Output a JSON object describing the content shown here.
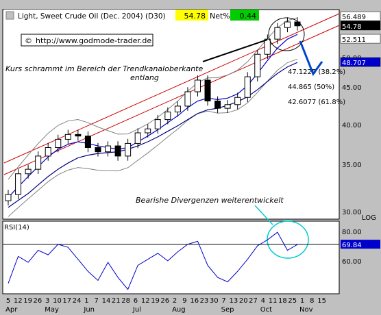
{
  "header": {
    "title": "Light, Sweet Crude Oil (Dec. 2004) (D30)",
    "last": "54.78",
    "pct_label": "Net%",
    "pct_value": "0.44",
    "url": "http://www.godmode-trader.de",
    "copyright_symbol": "©"
  },
  "annotations": {
    "trend_line1": "Kurs schrammt im Bereich der Trendkanaloberkante",
    "trend_line2": "entlang",
    "divergence": "Bearishe Divergenzen weiterentwickelt",
    "fib1": "47.1225 (38.2%)",
    "fib2": "44.865 (50%)",
    "fib3": "42.6077 (61.8%)"
  },
  "price_panel": {
    "scale_label": "LOG",
    "y_ticks": [
      "50.00",
      "45.00",
      "40.00",
      "35.00",
      "30.00"
    ],
    "markers": [
      {
        "label": "56.489",
        "value": 56.489,
        "bg": "#ffffff",
        "fg": "#000000"
      },
      {
        "label": "54.78",
        "value": 54.78,
        "bg": "#000000",
        "fg": "#ffffff"
      },
      {
        "label": "52.511",
        "value": 52.511,
        "bg": "#ffffff",
        "fg": "#000000"
      },
      {
        "label": "48.707",
        "value": 48.707,
        "bg": "#0000cc",
        "fg": "#ffffff"
      }
    ]
  },
  "rsi_panel": {
    "label": "RSI(14)",
    "y_ticks": [
      "80.00",
      "60.00"
    ],
    "marker": {
      "label": "69.84",
      "value": 69.84,
      "bg": "#0000cc",
      "fg": "#ffffff"
    }
  },
  "x_axis": {
    "days": [
      "5",
      "12",
      "19",
      "26",
      "3",
      "10",
      "17",
      "24",
      "1",
      "7",
      "14",
      "21",
      "28",
      "6",
      "12",
      "19",
      "26",
      "2",
      "9",
      "16",
      "23",
      "30",
      "7",
      "13",
      "20",
      "27",
      "4",
      "11",
      "18",
      "25",
      "1",
      "8",
      "15"
    ],
    "months": [
      "Apr",
      "May",
      "Jun",
      "Jul",
      "Aug",
      "Sep",
      "Oct",
      "Nov"
    ]
  },
  "colors": {
    "price": "#000000",
    "ma_fast": "#0000cc",
    "ma_slow": "#000080",
    "bollinger": "#808080",
    "channel": "#cc0000",
    "rsi": "#0000cc",
    "highlight": "#00cccc",
    "title_yellow": "#ffff00",
    "title_green": "#00cc00"
  },
  "chart_data": [
    {
      "type": "line",
      "title": "Light, Sweet Crude Oil (Dec. 2004) (D30)",
      "xlabel": "",
      "ylabel": "",
      "yscale": "log",
      "ylim": [
        29.5,
        57.5
      ],
      "x": [
        "2004-04-05",
        "2004-04-12",
        "2004-04-19",
        "2004-04-26",
        "2004-05-03",
        "2004-05-10",
        "2004-05-17",
        "2004-05-24",
        "2004-06-01",
        "2004-06-07",
        "2004-06-14",
        "2004-06-21",
        "2004-06-28",
        "2004-07-06",
        "2004-07-12",
        "2004-07-19",
        "2004-07-26",
        "2004-08-02",
        "2004-08-09",
        "2004-08-16",
        "2004-08-23",
        "2004-08-30",
        "2004-09-07",
        "2004-09-13",
        "2004-09-20",
        "2004-09-27",
        "2004-10-04",
        "2004-10-11",
        "2004-10-18",
        "2004-10-25"
      ],
      "series": [
        {
          "values": [
            31.8,
            34.0,
            34.5,
            36.0,
            37.0,
            38.0,
            38.6,
            38.4,
            37.0,
            36.5,
            37.2,
            36.0,
            37.5,
            38.8,
            39.3,
            40.5,
            41.5,
            42.3,
            44.3,
            46.0,
            43.0,
            42.0,
            42.5,
            43.5,
            46.5,
            50.0,
            52.5,
            54.5,
            55.5,
            54.8
          ]
        },
        {
          "values": [
            31.5,
            32.6,
            33.7,
            34.8,
            35.9,
            36.8,
            37.4,
            37.7,
            37.5,
            37.2,
            37.0,
            36.8,
            37.0,
            37.7,
            38.4,
            39.2,
            40.1,
            41.0,
            42.1,
            43.0,
            43.4,
            43.2,
            43.4,
            44.0,
            45.2,
            47.0,
            49.0,
            51.0,
            52.5,
            53.3
          ]
        },
        {
          "values": [
            30.5,
            31.2,
            31.9,
            32.8,
            33.7,
            34.5,
            35.2,
            35.8,
            36.1,
            36.3,
            36.4,
            36.5,
            36.8,
            37.2,
            37.7,
            38.3,
            39.0,
            39.7,
            40.5,
            41.3,
            41.8,
            42.0,
            42.4,
            42.9,
            43.6,
            44.6,
            45.8,
            47.0,
            48.0,
            48.7
          ]
        }
      ]
    },
    {
      "type": "line",
      "title": "RSI(14)",
      "xlabel": "",
      "ylabel": "",
      "ylim": [
        38,
        84
      ],
      "x": [
        "2004-04-05",
        "2004-04-12",
        "2004-04-19",
        "2004-04-26",
        "2004-05-03",
        "2004-05-10",
        "2004-05-17",
        "2004-05-24",
        "2004-06-01",
        "2004-06-07",
        "2004-06-14",
        "2004-06-21",
        "2004-06-28",
        "2004-07-06",
        "2004-07-12",
        "2004-07-19",
        "2004-07-26",
        "2004-08-02",
        "2004-08-09",
        "2004-08-16",
        "2004-08-23",
        "2004-08-30",
        "2004-09-07",
        "2004-09-13",
        "2004-09-20",
        "2004-09-27",
        "2004-10-04",
        "2004-10-11",
        "2004-10-18",
        "2004-10-25"
      ],
      "series": [
        {
          "values": [
            44,
            62,
            58,
            66,
            63,
            70,
            68,
            60,
            52,
            46,
            58,
            48,
            40,
            56,
            60,
            64,
            59,
            65,
            70,
            72,
            56,
            48,
            45,
            52,
            60,
            69,
            73,
            78,
            66,
            69.84
          ]
        }
      ]
    }
  ]
}
